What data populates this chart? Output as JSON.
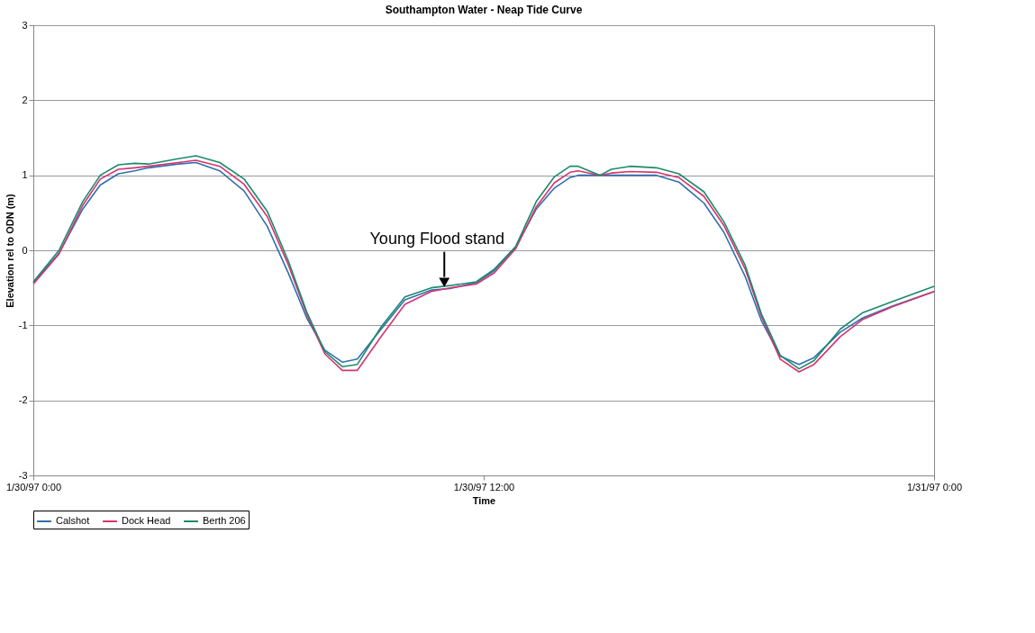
{
  "chart_data": {
    "type": "line",
    "title": "Southampton Water - Neap Tide Curve",
    "xlabel": "Time",
    "ylabel": "Elevation rel to ODN (m)",
    "x": [
      "1997-01-30T00:00",
      "1997-01-30T00:41",
      "1997-01-30T01:19",
      "1997-01-30T01:47",
      "1997-01-30T02:16",
      "1997-01-30T02:42",
      "1997-01-30T03:04",
      "1997-01-30T03:52",
      "1997-01-30T04:20",
      "1997-01-30T04:58",
      "1997-01-30T05:37",
      "1997-01-30T06:14",
      "1997-01-30T06:48",
      "1997-01-30T07:17",
      "1997-01-30T07:46",
      "1997-01-30T08:14",
      "1997-01-30T08:38",
      "1997-01-30T09:16",
      "1997-01-30T09:54",
      "1997-01-30T10:36",
      "1997-01-30T11:06",
      "1997-01-30T11:48",
      "1997-01-30T12:17",
      "1997-01-30T12:51",
      "1997-01-30T13:24",
      "1997-01-30T13:53",
      "1997-01-30T14:18",
      "1997-01-30T14:31",
      "1997-01-30T15:06",
      "1997-01-30T15:24",
      "1997-01-30T15:54",
      "1997-01-30T16:36",
      "1997-01-30T17:12",
      "1997-01-30T17:52",
      "1997-01-30T18:24",
      "1997-01-30T18:58",
      "1997-01-30T19:24",
      "1997-01-30T19:54",
      "1997-01-30T20:24",
      "1997-01-30T20:48",
      "1997-01-30T21:30",
      "1997-01-30T22:06",
      "1997-01-30T22:54",
      "1997-01-31T00:00"
    ],
    "series": [
      {
        "name": "Calshot",
        "color": "#2f6fb0",
        "values": [
          -0.43,
          -0.04,
          0.55,
          0.87,
          1.02,
          1.06,
          1.1,
          1.15,
          1.17,
          1.06,
          0.79,
          0.32,
          -0.31,
          -0.9,
          -1.33,
          -1.49,
          -1.45,
          -1.05,
          -0.66,
          -0.53,
          -0.51,
          -0.43,
          -0.27,
          0.04,
          0.55,
          0.83,
          0.97,
          1.0,
          1.0,
          1.0,
          1.0,
          1.0,
          0.91,
          0.63,
          0.24,
          -0.35,
          -0.94,
          -1.41,
          -1.52,
          -1.43,
          -1.09,
          -0.9,
          -0.74,
          -0.55
        ]
      },
      {
        "name": "Dock Head",
        "color": "#d6336f",
        "values": [
          -0.45,
          -0.05,
          0.6,
          0.95,
          1.08,
          1.1,
          1.12,
          1.17,
          1.2,
          1.12,
          0.88,
          0.45,
          -0.2,
          -0.85,
          -1.38,
          -1.6,
          -1.6,
          -1.15,
          -0.72,
          -0.55,
          -0.5,
          -0.45,
          -0.3,
          0.02,
          0.58,
          0.9,
          1.04,
          1.06,
          1.0,
          1.03,
          1.05,
          1.04,
          0.97,
          0.72,
          0.33,
          -0.25,
          -0.88,
          -1.45,
          -1.62,
          -1.52,
          -1.15,
          -0.92,
          -0.75,
          -0.55
        ]
      },
      {
        "name": "Berth 206",
        "color": "#1b8a6b",
        "values": [
          -0.42,
          0.0,
          0.65,
          1.0,
          1.14,
          1.16,
          1.15,
          1.22,
          1.26,
          1.17,
          0.95,
          0.52,
          -0.15,
          -0.82,
          -1.35,
          -1.55,
          -1.52,
          -1.02,
          -0.62,
          -0.5,
          -0.47,
          -0.42,
          -0.25,
          0.05,
          0.65,
          0.98,
          1.12,
          1.12,
          1.0,
          1.08,
          1.12,
          1.1,
          1.02,
          0.78,
          0.38,
          -0.2,
          -0.85,
          -1.4,
          -1.58,
          -1.47,
          -1.05,
          -0.83,
          -0.68,
          -0.48
        ]
      }
    ],
    "xlim": [
      "1997-01-30T00:00",
      "1997-01-31T00:00"
    ],
    "xticks": [
      {
        "value": "1997-01-30T00:00",
        "label": "1/30/97 0:00"
      },
      {
        "value": "1997-01-30T12:00",
        "label": "1/30/97 12:00"
      },
      {
        "value": "1997-01-31T00:00",
        "label": "1/31/97 0:00"
      }
    ],
    "ylim": [
      -3,
      3
    ],
    "yticks": [
      -3,
      -2,
      -1,
      0,
      1,
      2,
      3
    ],
    "annotations": [
      {
        "text": "Young Flood stand",
        "x": "1997-01-30T10:57",
        "y": -0.5
      }
    ],
    "grid": "y",
    "legend": "bottom",
    "marker": "none",
    "line_style": "solid"
  }
}
